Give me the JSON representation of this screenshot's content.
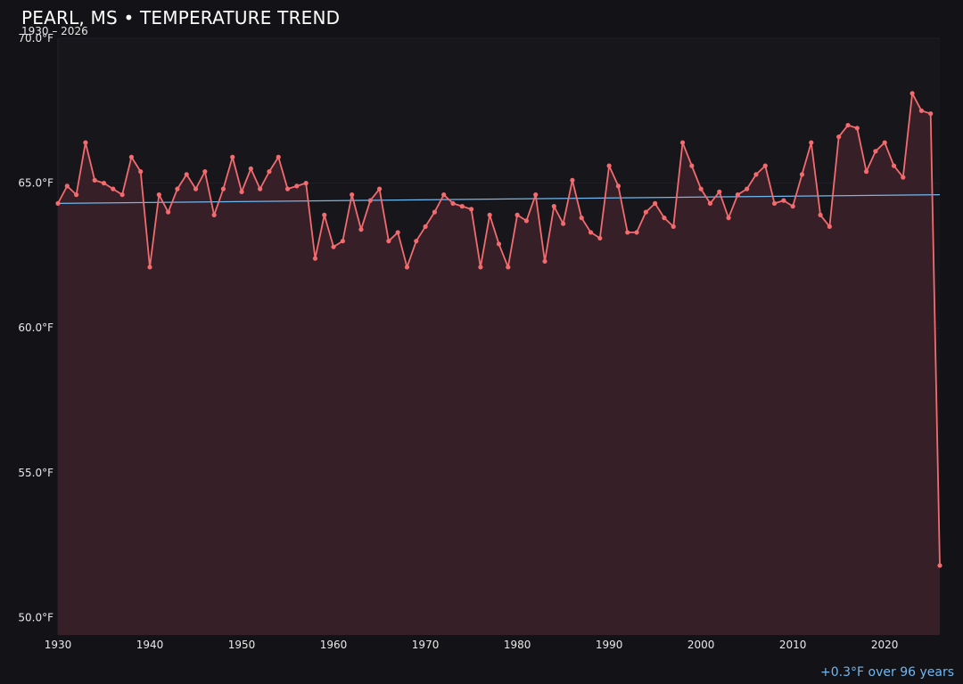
{
  "header": {
    "title": "PEARL, MS • TEMPERATURE TREND",
    "subtitle": "1930 – 2026"
  },
  "footer": {
    "trend_note": "+0.3°F over 96 years"
  },
  "colors": {
    "background": "#131217",
    "plot_background": "#17161b",
    "series_line": "#f26b6f",
    "series_fill": "#361f26",
    "trend_line": "#6fb8f0",
    "grid": "#221f25"
  },
  "chart_data": {
    "type": "line",
    "title": "PEARL, MS • TEMPERATURE TREND",
    "subtitle": "1930 – 2026",
    "xlabel": "",
    "ylabel": "",
    "xlim": [
      1930,
      2026
    ],
    "ylim": [
      49.4,
      70.0
    ],
    "x_ticks": [
      1930,
      1940,
      1950,
      1960,
      1970,
      1980,
      1990,
      2000,
      2010,
      2020
    ],
    "y_ticks": [
      50.0,
      55.0,
      60.0,
      65.0,
      70.0
    ],
    "y_tick_labels": [
      "50.0°F",
      "55.0°F",
      "60.0°F",
      "65.0°F",
      "70.0°F"
    ],
    "grid": true,
    "area_fill": true,
    "x": [
      1930,
      1931,
      1932,
      1933,
      1934,
      1935,
      1936,
      1937,
      1938,
      1939,
      1940,
      1941,
      1942,
      1943,
      1944,
      1945,
      1946,
      1947,
      1948,
      1949,
      1950,
      1951,
      1952,
      1953,
      1954,
      1955,
      1956,
      1957,
      1958,
      1959,
      1960,
      1961,
      1962,
      1963,
      1964,
      1965,
      1966,
      1967,
      1968,
      1969,
      1970,
      1971,
      1972,
      1973,
      1974,
      1975,
      1976,
      1977,
      1978,
      1979,
      1980,
      1981,
      1982,
      1983,
      1984,
      1985,
      1986,
      1987,
      1988,
      1989,
      1990,
      1991,
      1992,
      1993,
      1994,
      1995,
      1996,
      1997,
      1998,
      1999,
      2000,
      2001,
      2002,
      2003,
      2004,
      2005,
      2006,
      2007,
      2008,
      2009,
      2010,
      2011,
      2012,
      2013,
      2014,
      2015,
      2016,
      2017,
      2018,
      2019,
      2020,
      2021,
      2022,
      2023,
      2024,
      2025,
      2026
    ],
    "series": [
      {
        "values": [
          64.3,
          64.9,
          64.6,
          66.4,
          65.1,
          65.0,
          64.8,
          64.6,
          65.9,
          65.4,
          62.1,
          64.6,
          64.0,
          64.8,
          65.3,
          64.8,
          65.4,
          63.9,
          64.8,
          65.9,
          64.7,
          65.5,
          64.8,
          65.4,
          65.9,
          64.8,
          64.9,
          65.0,
          62.4,
          63.9,
          62.8,
          63.0,
          64.6,
          63.4,
          64.4,
          64.8,
          63.0,
          63.3,
          62.1,
          63.0,
          63.5,
          64.0,
          64.6,
          64.3,
          64.2,
          64.1,
          62.1,
          63.9,
          62.9,
          62.1,
          63.9,
          63.7,
          64.6,
          62.3,
          64.2,
          63.6,
          65.1,
          63.8,
          63.3,
          63.1,
          65.6,
          64.9,
          63.3,
          63.3,
          64.0,
          64.3,
          63.8,
          63.5,
          66.4,
          65.6,
          64.8,
          64.3,
          64.7,
          63.8,
          64.6,
          64.8,
          65.3,
          65.6,
          64.3,
          64.4,
          64.2,
          65.3,
          66.4,
          63.9,
          63.5,
          66.6,
          67.0,
          66.9,
          65.4,
          66.1,
          66.4,
          65.6,
          65.2,
          68.1,
          67.5,
          67.4,
          51.8
        ]
      }
    ],
    "trend": {
      "start": [
        1930,
        64.3
      ],
      "end": [
        2026,
        64.6
      ],
      "label": "+0.3°F over 96 years"
    }
  }
}
